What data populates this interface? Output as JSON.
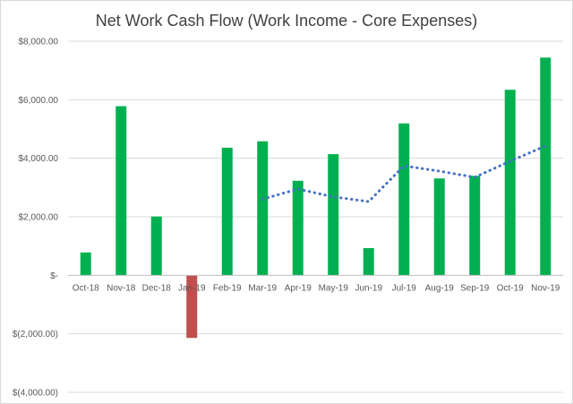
{
  "chart_data": {
    "type": "bar",
    "title": "Net Work Cash Flow (Work Income - Core Expenses)",
    "xlabel": "",
    "ylabel": "",
    "categories": [
      "Oct-18",
      "Nov-18",
      "Dec-18",
      "Jan-19",
      "Feb-19",
      "Mar-19",
      "Apr-19",
      "May-19",
      "Jun-19",
      "Jul-19",
      "Aug-19",
      "Sep-19",
      "Oct-19",
      "Nov-19"
    ],
    "series": [
      {
        "type": "bar",
        "values": [
          780,
          5780,
          2010,
          -2140,
          4360,
          4580,
          3230,
          4140,
          930,
          5190,
          3310,
          3400,
          6340,
          7440
        ],
        "color_positive": "#00b050",
        "color_negative": "#c0504d"
      },
      {
        "type": "line",
        "style": "dotted",
        "color": "#4472c4",
        "values": [
          null,
          null,
          null,
          null,
          null,
          2600,
          2950,
          2680,
          2520,
          3740,
          3560,
          3350,
          3900,
          4420
        ]
      }
    ],
    "ylim": [
      -4000,
      8000
    ],
    "yticks": [
      8000,
      6000,
      4000,
      2000,
      0,
      -2000,
      -4000
    ],
    "ytick_labels": [
      "$8,000.00",
      "$6,000.00",
      "$4,000.00",
      "$2,000.00",
      "$-",
      "$(2,000.00)",
      "$(4,000.00)"
    ],
    "grid": true,
    "legend": "none"
  }
}
